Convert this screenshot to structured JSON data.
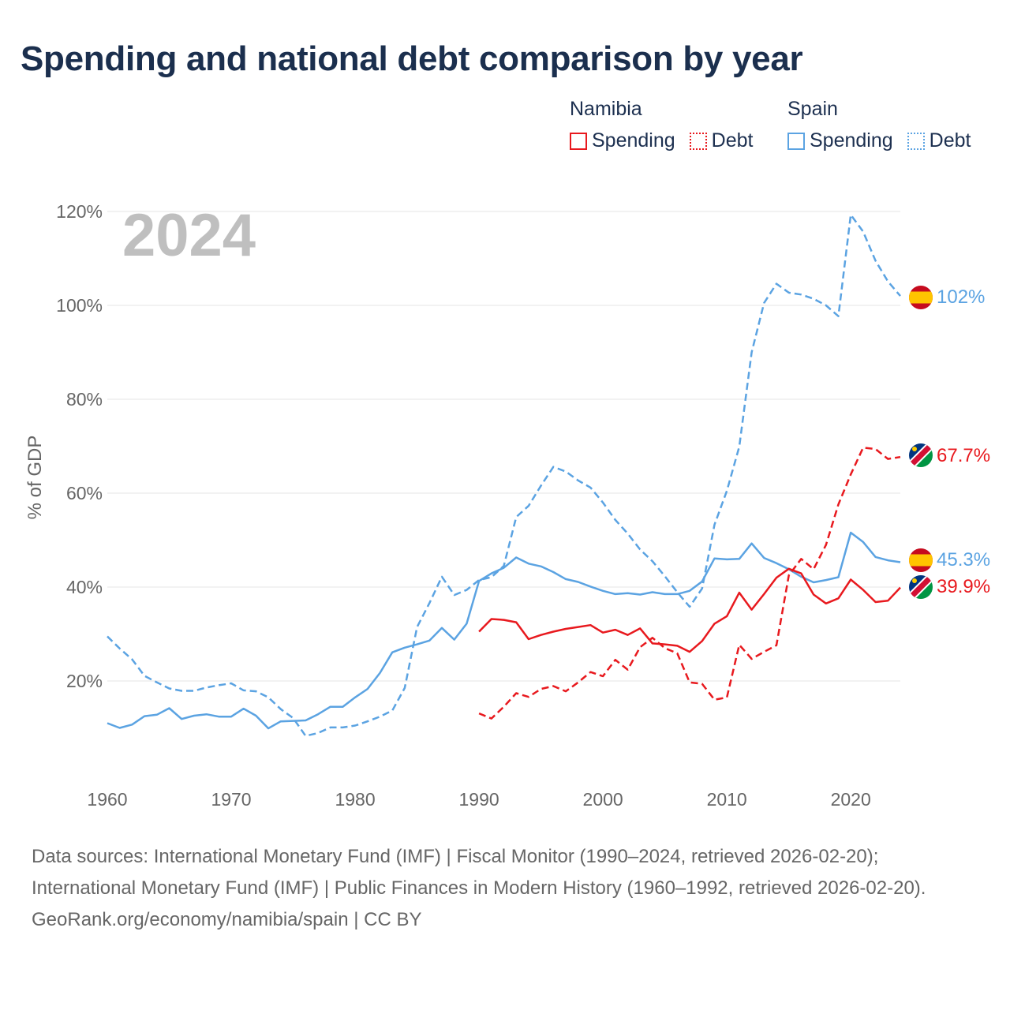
{
  "title": "Spending and national debt comparison by year",
  "legend": {
    "namibia": {
      "name": "Namibia",
      "spending": "Spending",
      "debt": "Debt"
    },
    "spain": {
      "name": "Spain",
      "spending": "Spending",
      "debt": "Debt"
    }
  },
  "colors": {
    "namibia": "#e8191e",
    "spain": "#5ba3e2",
    "grid": "#e6e6e6",
    "axis_text": "#666666",
    "year_label": "#bfbfbf"
  },
  "footer": {
    "sources": "Data sources: International Monetary Fund (IMF) | Fiscal Monitor (1990–2024, retrieved 2026-02-20); International Monetary Fund (IMF) | Public Finances in Modern History (1960–1992, retrieved 2026-02-20).",
    "credit": "GeoRank.org/economy/namibia/spain | CC BY"
  },
  "chart_data": {
    "type": "line",
    "year_label": "2024",
    "ylabel": "% of GDP",
    "xlim": [
      1960,
      2024
    ],
    "ylim": [
      0,
      120
    ],
    "x_ticks": [
      1960,
      1970,
      1980,
      1990,
      2000,
      2010,
      2020
    ],
    "y_ticks": [
      20,
      40,
      60,
      80,
      100,
      120
    ],
    "y_tick_labels": [
      "20%",
      "40%",
      "60%",
      "80%",
      "100%",
      "120%"
    ],
    "end_labels": [
      "102%",
      "67.7%",
      "45.3%",
      "39.9%"
    ],
    "series": [
      {
        "name": "Spain Spending",
        "country": "spain",
        "style": "solid",
        "x": [
          1960,
          1961,
          1962,
          1963,
          1964,
          1965,
          1966,
          1967,
          1968,
          1969,
          1970,
          1971,
          1972,
          1973,
          1974,
          1975,
          1976,
          1977,
          1978,
          1979,
          1980,
          1981,
          1982,
          1983,
          1984,
          1985,
          1986,
          1987,
          1988,
          1989,
          1990,
          1991,
          1992,
          1993,
          1994,
          1995,
          1996,
          1997,
          1998,
          1999,
          2000,
          2001,
          2002,
          2003,
          2004,
          2005,
          2006,
          2007,
          2008,
          2009,
          2010,
          2011,
          2012,
          2013,
          2014,
          2015,
          2016,
          2017,
          2018,
          2019,
          2020,
          2021,
          2022,
          2023,
          2024
        ],
        "y": [
          11,
          10,
          10.7,
          12.5,
          12.8,
          14.2,
          11.9,
          12.6,
          12.9,
          12.4,
          12.4,
          14.1,
          12.6,
          9.9,
          11.4,
          11.5,
          11.6,
          12.9,
          14.5,
          14.5,
          16.5,
          18.3,
          21.7,
          26.1,
          27.1,
          27.8,
          28.6,
          31.3,
          28.8,
          32.2,
          41.3,
          42.9,
          44.1,
          46.3,
          45.0,
          44.4,
          43.2,
          41.7,
          41.1,
          40.1,
          39.2,
          38.5,
          38.7,
          38.4,
          38.9,
          38.5,
          38.5,
          39.2,
          41.2,
          46.1,
          45.9,
          46.0,
          49.3,
          46.2,
          45.1,
          43.8,
          42.2,
          41.0,
          41.5,
          42.1,
          51.6,
          49.6,
          46.4,
          45.7,
          45.3
        ]
      },
      {
        "name": "Spain Debt",
        "country": "spain",
        "style": "dashed",
        "x": [
          1960,
          1961,
          1962,
          1963,
          1964,
          1965,
          1966,
          1967,
          1968,
          1969,
          1970,
          1971,
          1972,
          1973,
          1974,
          1975,
          1976,
          1977,
          1978,
          1979,
          1980,
          1981,
          1982,
          1983,
          1984,
          1985,
          1986,
          1987,
          1988,
          1989,
          1990,
          1991,
          1992,
          1993,
          1994,
          1995,
          1996,
          1997,
          1998,
          1999,
          2000,
          2001,
          2002,
          2003,
          2004,
          2005,
          2006,
          2007,
          2008,
          2009,
          2010,
          2011,
          2012,
          2013,
          2014,
          2015,
          2016,
          2017,
          2018,
          2019,
          2020,
          2021,
          2022,
          2023,
          2024
        ],
        "y": [
          29.5,
          26.9,
          24.6,
          21.1,
          19.7,
          18.4,
          17.9,
          17.9,
          18.6,
          19.1,
          19.5,
          18.0,
          17.8,
          16.5,
          14.0,
          12.1,
          8.3,
          8.9,
          10.1,
          10.1,
          10.5,
          11.4,
          12.4,
          13.7,
          18.5,
          31.5,
          36.6,
          42.2,
          38.3,
          39.4,
          41.5,
          42.1,
          44.5,
          54.9,
          57.3,
          61.6,
          65.6,
          64.6,
          62.7,
          61.2,
          58.0,
          54.3,
          51.4,
          48.0,
          45.5,
          42.3,
          38.9,
          35.8,
          39.7,
          53.3,
          60.5,
          69.9,
          90.0,
          100.5,
          104.6,
          102.7,
          102.3,
          101.4,
          100.0,
          97.7,
          119.3,
          115.7,
          109.5,
          105.1,
          102
        ]
      },
      {
        "name": "Namibia Spending",
        "country": "namibia",
        "style": "solid",
        "x": [
          1990,
          1991,
          1992,
          1993,
          1994,
          1995,
          1996,
          1997,
          1998,
          1999,
          2000,
          2001,
          2002,
          2003,
          2004,
          2005,
          2006,
          2007,
          2008,
          2009,
          2010,
          2011,
          2012,
          2013,
          2014,
          2015,
          2016,
          2017,
          2018,
          2019,
          2020,
          2021,
          2022,
          2023,
          2024
        ],
        "y": [
          30.5,
          33.2,
          33.0,
          32.5,
          28.9,
          29.8,
          30.5,
          31.1,
          31.5,
          31.9,
          30.3,
          30.9,
          29.8,
          31.2,
          28.0,
          27.8,
          27.5,
          26.2,
          28.5,
          32.2,
          33.8,
          38.8,
          35.2,
          38.5,
          42.0,
          43.9,
          42.9,
          38.4,
          36.5,
          37.6,
          41.6,
          39.4,
          36.8,
          37.1,
          39.9
        ]
      },
      {
        "name": "Namibia Debt",
        "country": "namibia",
        "style": "dashed",
        "x": [
          1990,
          1991,
          1992,
          1993,
          1994,
          1995,
          1996,
          1997,
          1998,
          1999,
          2000,
          2001,
          2002,
          2003,
          2004,
          2005,
          2006,
          2007,
          2008,
          2009,
          2010,
          2011,
          2012,
          2013,
          2014,
          2015,
          2016,
          2017,
          2018,
          2019,
          2020,
          2021,
          2022,
          2023,
          2024
        ],
        "y": [
          13.1,
          12.0,
          14.5,
          17.4,
          16.6,
          18.3,
          18.9,
          17.8,
          19.7,
          21.9,
          21.0,
          24.5,
          22.4,
          27.2,
          29.2,
          27.0,
          25.9,
          19.7,
          19.4,
          16.0,
          16.5,
          27.7,
          24.7,
          26.2,
          27.6,
          42.5,
          46.0,
          43.8,
          49.0,
          57.6,
          64.0,
          69.7,
          69.4,
          67.3,
          67.7
        ]
      }
    ]
  }
}
